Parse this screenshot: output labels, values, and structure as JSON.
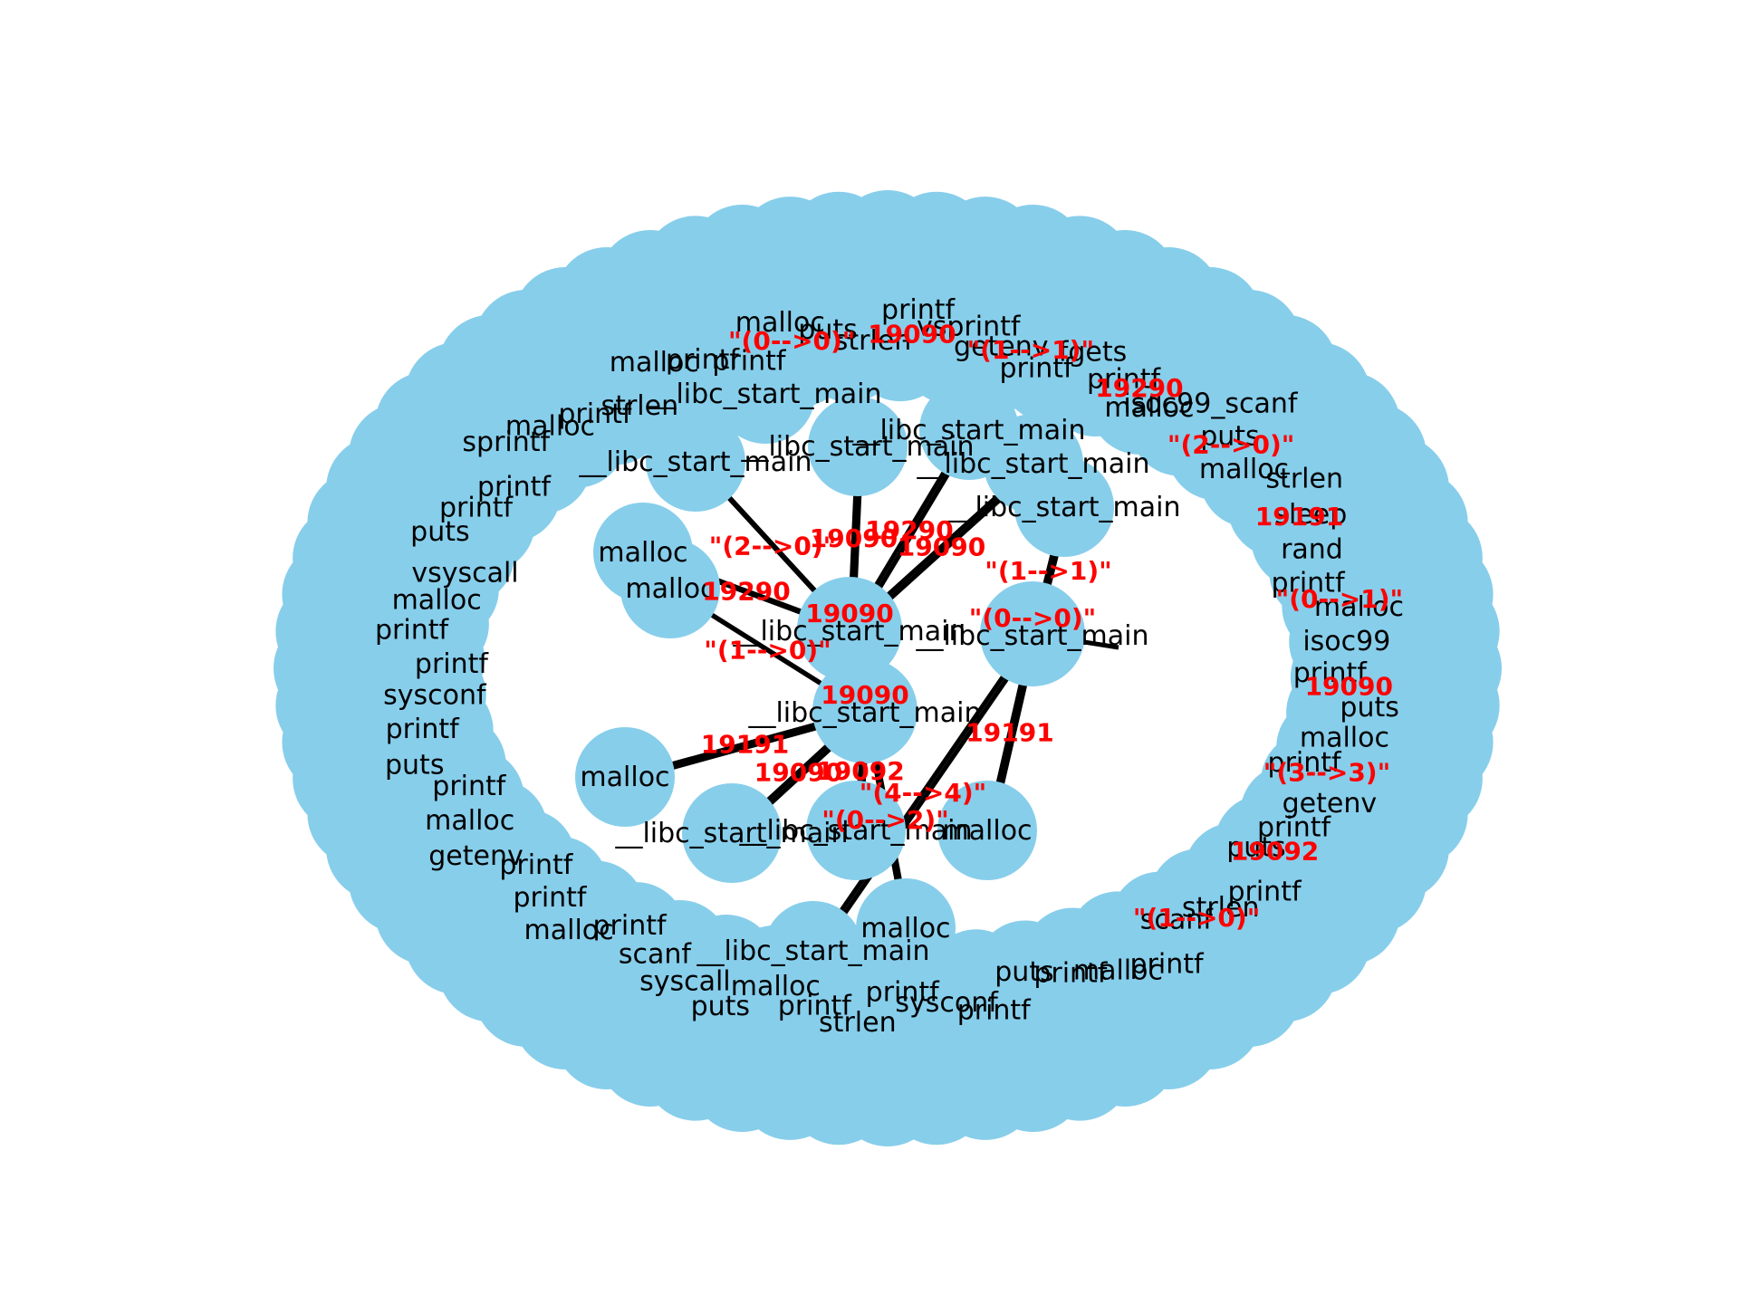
{
  "graph": {
    "node_color": "#87ceeb",
    "edge_color": "#000000",
    "edge_label_color": "#ff0000",
    "node_label_color": "#000000",
    "hubs": [
      {
        "id": "hub-a",
        "label": "__libc_start_main",
        "id_label": "19090"
      },
      {
        "id": "hub-b",
        "label": "__libc_start_main",
        "id_label": "19090"
      },
      {
        "id": "hub-c",
        "label": "__libc_start_main",
        "id_label": "\"(0-->0)\""
      }
    ],
    "ring_labels": [
      "printf",
      "getenv",
      "printf",
      "puts",
      "printf",
      "strlen",
      "scanf",
      "printf",
      "malloc",
      "printf",
      "puts",
      "printf",
      "sysconf",
      "printf",
      "strlen",
      "printf",
      "malloc",
      "puts",
      "syscall",
      "scanf",
      "printf",
      "malloc",
      "printf",
      "printf",
      "getenv",
      "malloc",
      "printf",
      "puts",
      "printf",
      "sysconf",
      "printf",
      "printf",
      "malloc",
      "vsyscall",
      "puts",
      "printf",
      "printf",
      "sprintf",
      "malloc",
      "printf",
      "strlen",
      "malloc",
      "printf",
      "printf",
      "malloc",
      "puts",
      "strlen",
      "printf",
      "_vsprintf",
      "getenv",
      "printf",
      "fgets",
      "printf",
      "malloc",
      "isoc99_scanf",
      "puts",
      "malloc",
      "strlen",
      "sleep",
      "rand",
      "printf",
      "malloc",
      "isoc99",
      "printf",
      "puts",
      "malloc"
    ],
    "inner_labels": [
      "__libc_start_main",
      "__libc_start_main",
      "__libc_start_main",
      "__libc_start_main",
      "__libc_start_main",
      "malloc",
      "malloc",
      "__libc_start_main",
      "__libc_start_main",
      "malloc",
      "__libc_start_main",
      "malloc",
      "__libc_start_main",
      "malloc"
    ],
    "edge_labels": [
      "19090",
      "19290",
      "19090",
      "19290",
      "19191",
      "19090",
      "19092",
      "19191",
      "\"(1-->1)\"",
      "\"(2-->0)\"",
      "\"(0-->2)\"",
      "\"(4-->4)\"",
      "\"(1-->0)\"",
      "\"(0-->0)\"",
      "19090",
      "\"(1-->1)\"",
      "19290",
      "\"(2-->0)\"",
      "19191",
      "\"(0-->1)\"",
      "19090",
      "\"(3-->3)\"",
      "19092",
      "\"(1-->0)\""
    ]
  }
}
